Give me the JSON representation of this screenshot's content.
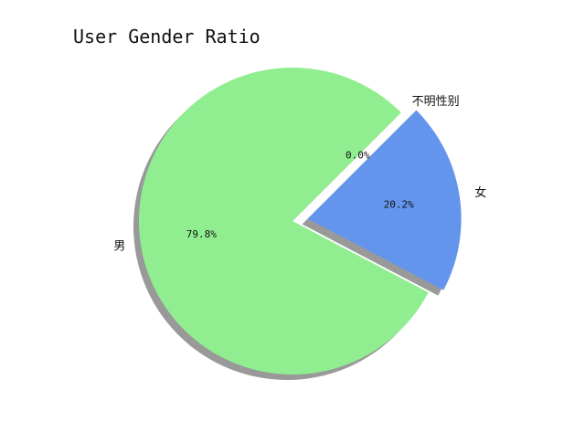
{
  "chart_data": {
    "type": "pie",
    "title": "User Gender Ratio",
    "categories": [
      "男",
      "女",
      "不明性别"
    ],
    "values": [
      79.8,
      20.2,
      0.0
    ],
    "labels_pct": [
      "79.8%",
      "20.2%",
      "0.0%"
    ],
    "colors": [
      "#90ee90",
      "#6495ed",
      "#ffffff"
    ],
    "explode": [
      0,
      0.1,
      0
    ],
    "start_angle_deg": 45,
    "shadow": true,
    "legend": "none"
  }
}
